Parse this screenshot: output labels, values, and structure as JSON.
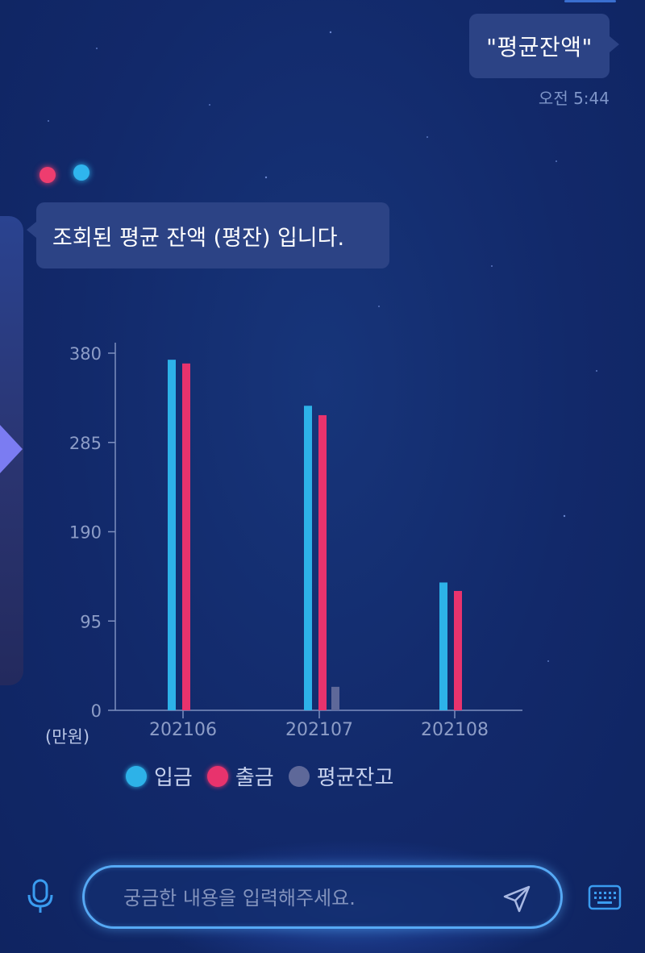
{
  "user_message": {
    "text": "\"평균잔액\"",
    "time": "오전 5:44"
  },
  "bot_message": {
    "text": "조회된 평균 잔액 (평잔) 입니다."
  },
  "chart_data": {
    "type": "bar",
    "categories": [
      "202106",
      "202107",
      "202108"
    ],
    "series": [
      {
        "name": "입금",
        "color": "#2db2e8",
        "values": [
          373,
          324,
          136
        ]
      },
      {
        "name": "출금",
        "color": "#e8336d",
        "values": [
          369,
          314,
          127
        ]
      },
      {
        "name": "평균잔고",
        "color": "#5e6899",
        "values": [
          0,
          25,
          0
        ]
      }
    ],
    "yticks": [
      0,
      95,
      190,
      285,
      380
    ],
    "ylim": [
      0,
      380
    ],
    "unit_label": "(만원)",
    "grid": false,
    "legend_position": "bottom"
  },
  "input": {
    "placeholder": "궁금한 내용을 입력해주세요.",
    "value": ""
  },
  "icons": {
    "mic": "microphone-icon",
    "send": "send-icon",
    "keyboard": "keyboard-icon"
  },
  "colors": {
    "background": "#12296a",
    "bubble": "#2c4385",
    "accent_blue": "#2db2e8",
    "accent_red": "#e8336d"
  }
}
